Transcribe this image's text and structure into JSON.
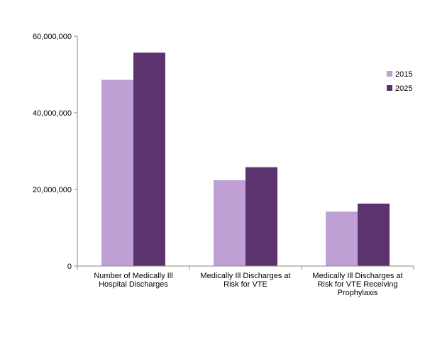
{
  "chart_data": {
    "type": "bar",
    "title": "",
    "xlabel": "",
    "ylabel": "",
    "categories": [
      [
        "Number of Medically Ill",
        "Hospital Discharges"
      ],
      [
        "Medically Ill Discharges at",
        "Risk for VTE"
      ],
      [
        "Medically Ill Discharges at",
        "Risk for VTE Receiving",
        "Prophylaxis"
      ]
    ],
    "series": [
      {
        "name": "2015",
        "color": "#bfa0d5",
        "values": [
          48600000,
          22400000,
          14200000
        ]
      },
      {
        "name": "2025",
        "color": "#5b336e",
        "values": [
          55700000,
          25800000,
          16300000
        ]
      }
    ],
    "ylim": [
      0,
      60000000
    ],
    "yticks": [
      0,
      20000000,
      40000000,
      60000000
    ],
    "ytick_labels": [
      "0",
      "20,000,000",
      "40,000,000",
      "60,000,000"
    ],
    "grid": false,
    "legend_position": "right"
  }
}
